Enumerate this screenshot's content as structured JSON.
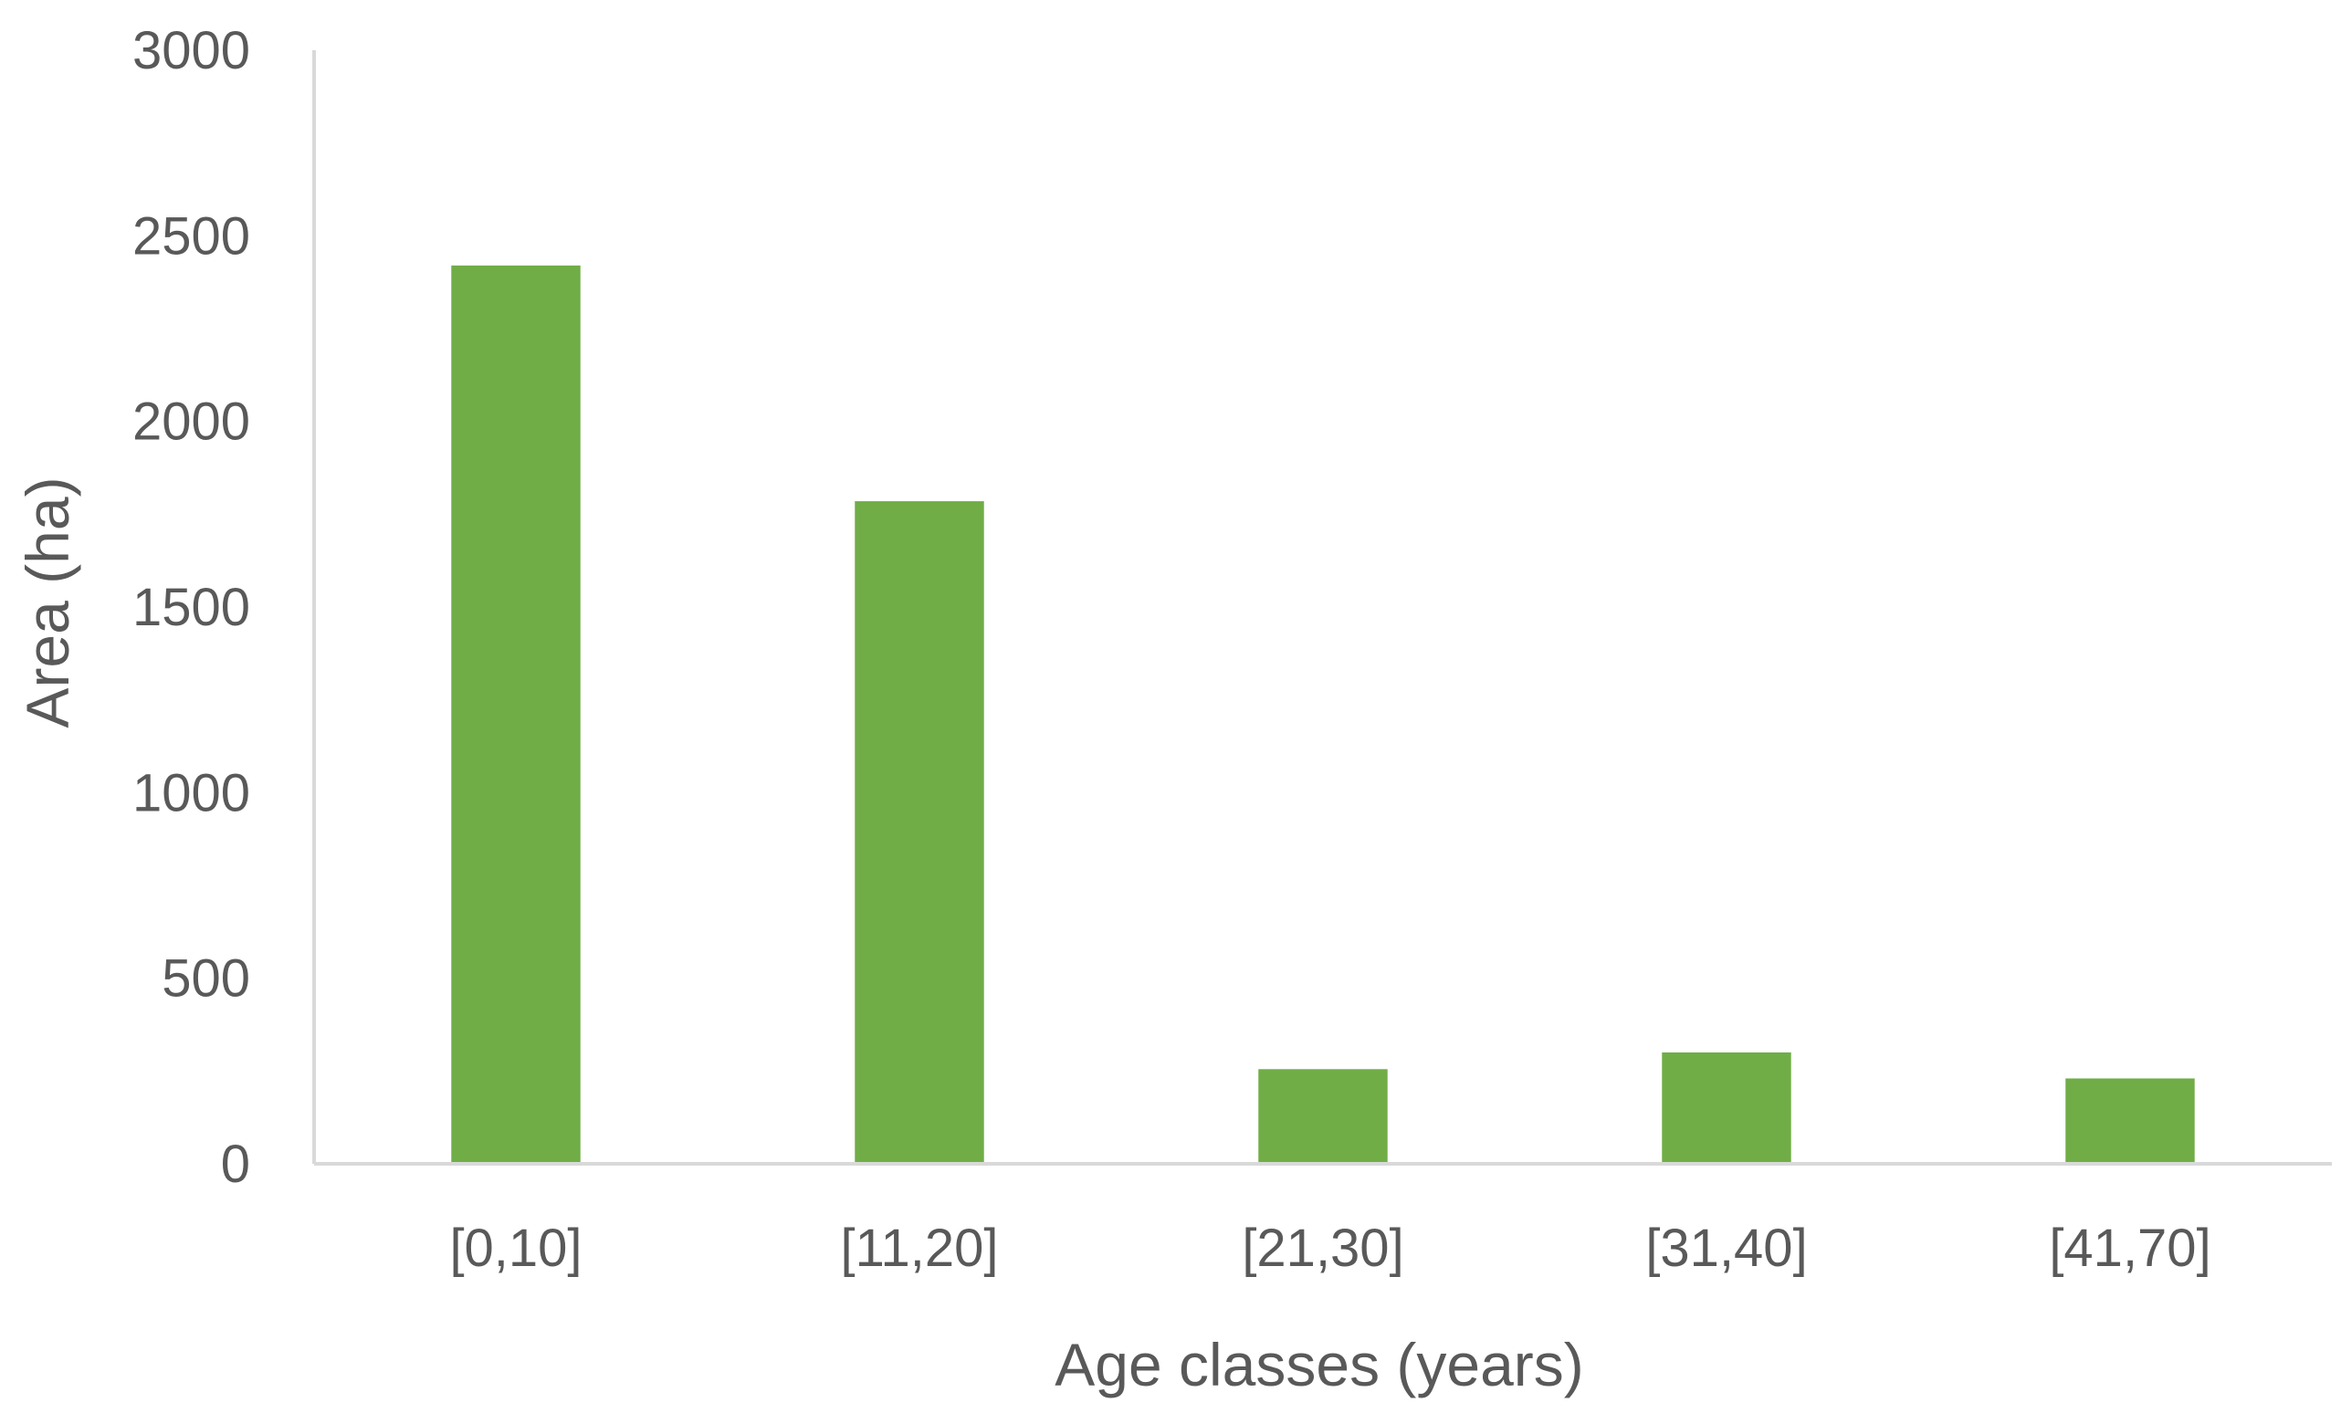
{
  "chart_data": {
    "type": "bar",
    "categories": [
      "[0,10]",
      "[11,20]",
      "[21,30]",
      "[31,40]",
      "[41,70]"
    ],
    "series": [
      {
        "values": [
          2420,
          1785,
          255,
          300,
          230
        ]
      }
    ],
    "xlabel": "Age classes (years)",
    "ylabel": "Area (ha)",
    "ylim": [
      0,
      3000
    ],
    "yticks": [
      "0",
      "500",
      "1000",
      "1500",
      "2000",
      "2500",
      "3000"
    ],
    "grid": false,
    "legend": "none"
  },
  "colors": {
    "bar": "#70AD47",
    "axis_line": "#D9D9D9",
    "text": "#595959"
  }
}
